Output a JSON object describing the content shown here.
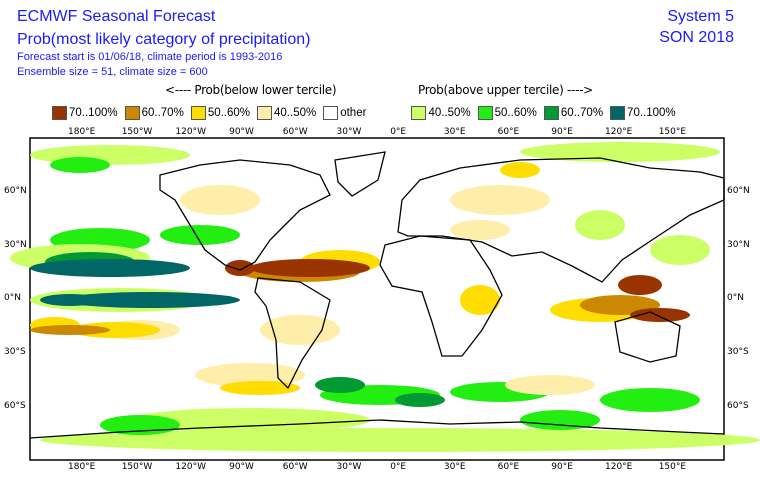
{
  "header": {
    "title": "ECMWF Seasonal Forecast",
    "subtitle": "Prob(most likely category of precipitation)",
    "info1": "Forecast start is 01/06/18, climate period is 1993-2016",
    "info2": "Ensemble size = 51, climate size = 600",
    "system": "System 5",
    "season": "SON 2018"
  },
  "legend": {
    "below_label": "<---- Prob(below lower tercile)",
    "above_label": "Prob(above upper tercile) ---->",
    "items": [
      {
        "label": "70..100%",
        "color": "#993300"
      },
      {
        "label": "60..70%",
        "color": "#cc8800"
      },
      {
        "label": "50..60%",
        "color": "#ffdd00"
      },
      {
        "label": "40..50%",
        "color": "#ffeeaa"
      },
      {
        "label": "other",
        "color": "#ffffff"
      },
      {
        "label": "40..50%",
        "color": "#ccff66"
      },
      {
        "label": "50..60%",
        "color": "#22ee11"
      },
      {
        "label": "60..70%",
        "color": "#009933"
      },
      {
        "label": "70..100%",
        "color": "#006666"
      }
    ]
  },
  "axes": {
    "lon_labels": [
      "180°E",
      "150°W",
      "120°W",
      "90°W",
      "60°W",
      "30°W",
      "0°E",
      "30°E",
      "60°E",
      "90°E",
      "120°E",
      "150°E"
    ],
    "lat_labels": [
      "60°N",
      "30°N",
      "0°N",
      "30°S",
      "60°S"
    ]
  }
}
